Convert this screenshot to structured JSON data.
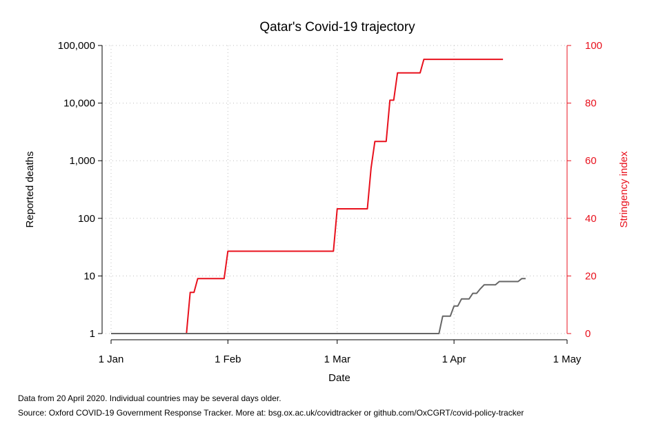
{
  "chart_data": {
    "type": "line",
    "title": "Qatar's Covid-19 trajectory",
    "xlabel": "Date",
    "x_ticks": [
      "1 Jan",
      "1 Feb",
      "1 Mar",
      "1 Apr",
      "1 May"
    ],
    "xlim": [
      "2020-01-01",
      "2020-05-01"
    ],
    "y_left": {
      "label": "Reported deaths",
      "scale": "log",
      "ticks": [
        1,
        10,
        100,
        1000,
        10000,
        100000
      ],
      "tick_labels": [
        "1",
        "10",
        "100",
        "1,000",
        "10,000",
        "100,000"
      ],
      "ylim": [
        1,
        100000
      ]
    },
    "y_right": {
      "label": "Stringency index",
      "scale": "linear",
      "ticks": [
        0,
        20,
        40,
        60,
        80,
        100
      ],
      "tick_labels": [
        "0",
        "20",
        "40",
        "60",
        "80",
        "100"
      ],
      "ylim": [
        0,
        100
      ]
    },
    "grid": true,
    "series": [
      {
        "axis": "right",
        "color": "#e8101c",
        "points": [
          [
            "2020-01-01",
            0
          ],
          [
            "2020-01-21",
            0
          ],
          [
            "2020-01-22",
            14.3
          ],
          [
            "2020-01-23",
            14.3
          ],
          [
            "2020-01-24",
            19.1
          ],
          [
            "2020-01-31",
            19.1
          ],
          [
            "2020-02-01",
            28.6
          ],
          [
            "2020-02-29",
            28.6
          ],
          [
            "2020-03-01",
            43.3
          ],
          [
            "2020-03-09",
            43.3
          ],
          [
            "2020-03-10",
            57.5
          ],
          [
            "2020-03-11",
            66.7
          ],
          [
            "2020-03-14",
            66.7
          ],
          [
            "2020-03-15",
            81.0
          ],
          [
            "2020-03-16",
            81.0
          ],
          [
            "2020-03-17",
            90.5
          ],
          [
            "2020-03-23",
            90.5
          ],
          [
            "2020-03-24",
            95.2
          ],
          [
            "2020-04-14",
            95.2
          ]
        ]
      },
      {
        "axis": "left",
        "color": "#666666",
        "points": [
          [
            "2020-01-01",
            1
          ],
          [
            "2020-03-28",
            1
          ],
          [
            "2020-03-29",
            2
          ],
          [
            "2020-03-31",
            2
          ],
          [
            "2020-04-01",
            3
          ],
          [
            "2020-04-02",
            3
          ],
          [
            "2020-04-03",
            4
          ],
          [
            "2020-04-05",
            4
          ],
          [
            "2020-04-06",
            5
          ],
          [
            "2020-04-07",
            5
          ],
          [
            "2020-04-08",
            6
          ],
          [
            "2020-04-09",
            7
          ],
          [
            "2020-04-12",
            7
          ],
          [
            "2020-04-13",
            8
          ],
          [
            "2020-04-18",
            8
          ],
          [
            "2020-04-19",
            9
          ],
          [
            "2020-04-20",
            9
          ]
        ]
      }
    ]
  },
  "footnote": "Data from 20 April 2020. Individual countries may be several days older.",
  "source": "Source: Oxford COVID-19 Government Response Tracker. More at: bsg.ox.ac.uk/covidtracker or github.com/OxCGRT/covid-policy-tracker"
}
